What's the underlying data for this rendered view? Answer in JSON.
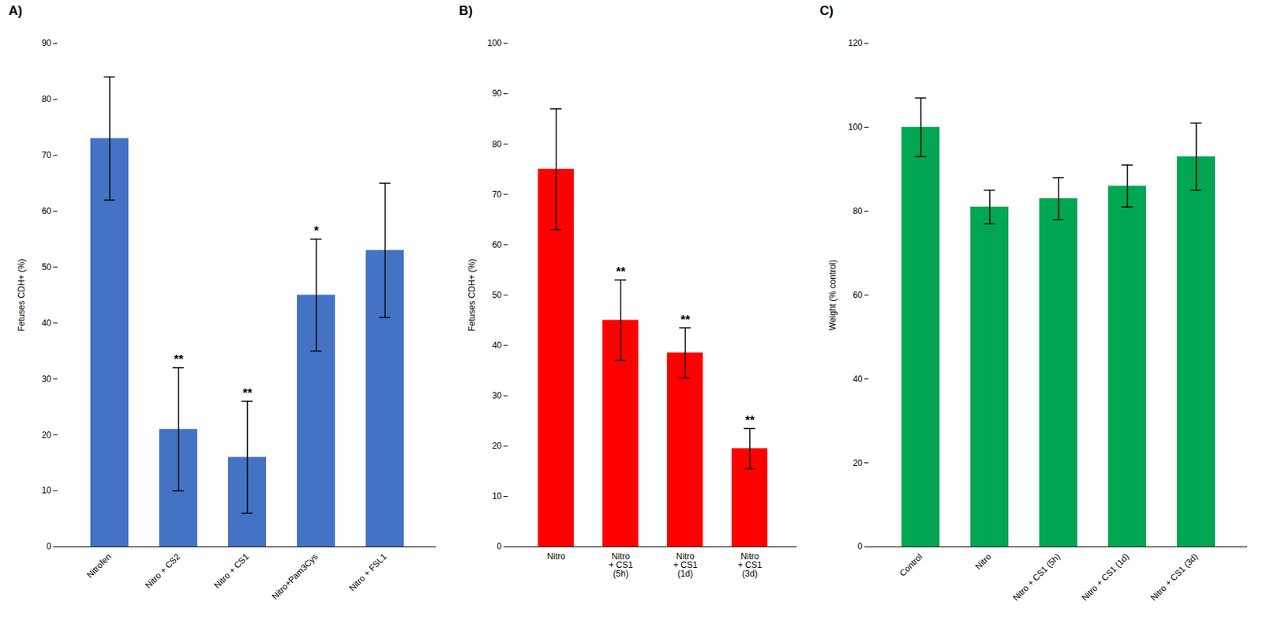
{
  "chart_data": [
    {
      "type": "bar",
      "title": "A)",
      "categories": [
        "Nitrofen",
        "Nitro + CS2",
        "Nitro + CS1",
        "Nitro+Pam3Cys",
        "Nitro + FSL1"
      ],
      "values": [
        73,
        21,
        16,
        45,
        53
      ],
      "errors": [
        11,
        11,
        10,
        10,
        12
      ],
      "annotations": [
        null,
        "**",
        "**",
        "*",
        null
      ],
      "color": "#4472C4",
      "ylabel": "Fetuses CDH+ (%)",
      "ylim": [
        0,
        90
      ],
      "yticks": [
        0,
        10,
        20,
        30,
        40,
        50,
        60,
        70,
        80,
        90
      ],
      "grid": false
    },
    {
      "type": "bar",
      "title": "B)",
      "categories": [
        "Nitro",
        "Nitro\n+ CS1\n(5h)",
        "Nitro\n+ CS1\n(1d)",
        "Nitro\n+ CS1\n(3d)"
      ],
      "values": [
        75,
        45,
        38.5,
        19.5
      ],
      "errors": [
        12,
        8,
        5,
        4
      ],
      "annotations": [
        null,
        "**",
        "**",
        "**"
      ],
      "color": "#FF0000",
      "ylabel": "Fetuses CDH+ (%)",
      "ylim": [
        0,
        100
      ],
      "yticks": [
        0,
        10,
        20,
        30,
        40,
        50,
        60,
        70,
        80,
        90,
        100
      ],
      "grid": false
    },
    {
      "type": "bar",
      "title": "C)",
      "categories": [
        "Control",
        "Nitro",
        "Nitro + CS1 (5h)",
        "Nitro + CS1 (1d)",
        "Nitro + CS1 (3d)"
      ],
      "values": [
        100,
        81,
        83,
        86,
        93
      ],
      "errors": [
        7,
        4,
        5,
        5,
        8
      ],
      "color": "#00A651",
      "ylabel": "Weight (% control)",
      "ylim": [
        0,
        120
      ],
      "yticks": [
        0,
        20,
        40,
        60,
        80,
        100,
        120
      ],
      "grid": false
    }
  ]
}
